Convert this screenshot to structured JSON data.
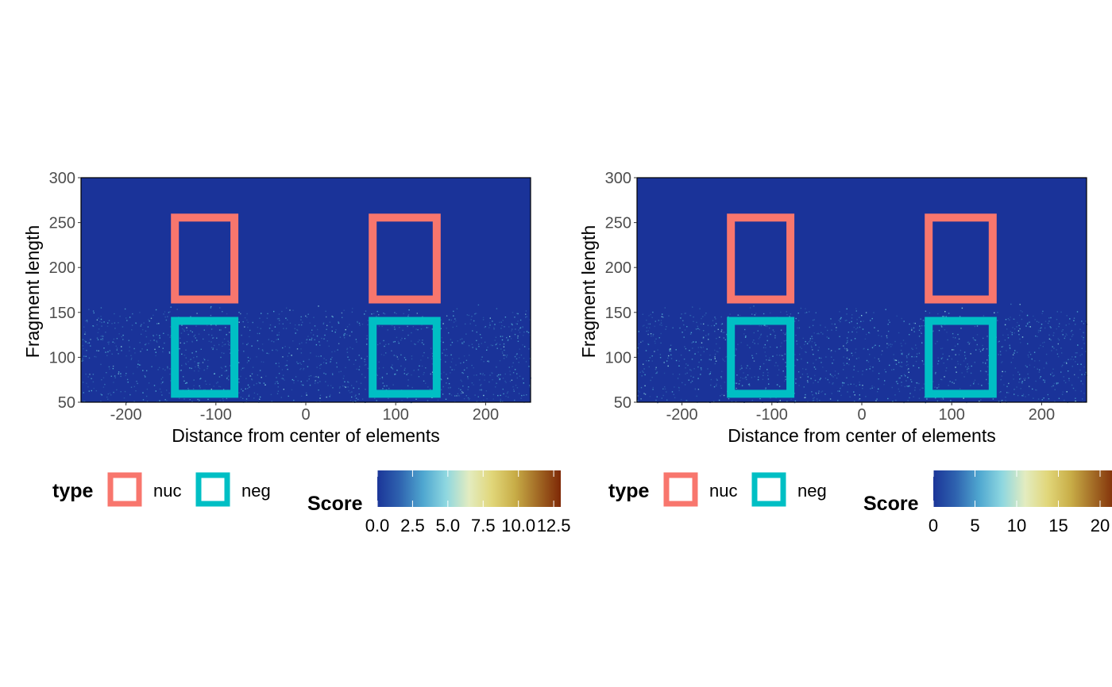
{
  "colors": {
    "background_fill": "#1a3399",
    "nuc": "#f8766d",
    "neg": "#00bfc4",
    "colormap": [
      "#1b3598",
      "#2f64b0",
      "#4fa7d0",
      "#8ed7e0",
      "#e3ecc0",
      "#e1d679",
      "#c8ad47",
      "#a26a25",
      "#7e2806"
    ]
  },
  "chart_data": [
    {
      "type": "heatmap",
      "title": "",
      "xlabel": "Distance from center of elements",
      "ylabel": "Fragment length",
      "xlim": [
        -250,
        250
      ],
      "ylim": [
        50,
        300
      ],
      "x_ticks": [
        -200,
        -100,
        0,
        100,
        200
      ],
      "x_tick_labels": [
        "-200",
        "-100",
        "0",
        "100",
        "200"
      ],
      "y_ticks": [
        50,
        100,
        150,
        200,
        250,
        300
      ],
      "y_tick_labels": [
        "50",
        "100",
        "150",
        "200",
        "250",
        "300"
      ],
      "grid": false,
      "signal_band_fragment_length": [
        50,
        160
      ],
      "regions": [
        {
          "type": "nuc",
          "x": [
            -150,
            -75
          ],
          "y": [
            160,
            260
          ]
        },
        {
          "type": "nuc",
          "x": [
            70,
            150
          ],
          "y": [
            160,
            260
          ]
        },
        {
          "type": "neg",
          "x": [
            -150,
            -75
          ],
          "y": [
            55,
            145
          ]
        },
        {
          "type": "neg",
          "x": [
            70,
            150
          ],
          "y": [
            55,
            145
          ]
        }
      ],
      "legend_type": {
        "title": "type",
        "items": [
          "nuc",
          "neg"
        ],
        "position": "bottom"
      },
      "colorbar": {
        "title": "Score",
        "range": [
          0,
          13
        ],
        "ticks": [
          0,
          2.5,
          5,
          7.5,
          10,
          12.5
        ],
        "tick_labels": [
          "0.0",
          "2.5",
          "5.0",
          "7.5",
          "10.0",
          "12.5"
        ],
        "position": "bottom"
      }
    },
    {
      "type": "heatmap",
      "title": "",
      "xlabel": "Distance from center of elements",
      "ylabel": "Fragment length",
      "xlim": [
        -250,
        250
      ],
      "ylim": [
        50,
        300
      ],
      "x_ticks": [
        -200,
        -100,
        0,
        100,
        200
      ],
      "x_tick_labels": [
        "-200",
        "-100",
        "0",
        "100",
        "200"
      ],
      "y_ticks": [
        50,
        100,
        150,
        200,
        250,
        300
      ],
      "y_tick_labels": [
        "50",
        "100",
        "150",
        "200",
        "250",
        "300"
      ],
      "grid": false,
      "signal_band_fragment_length": [
        50,
        160
      ],
      "regions": [
        {
          "type": "nuc",
          "x": [
            -150,
            -75
          ],
          "y": [
            160,
            260
          ]
        },
        {
          "type": "nuc",
          "x": [
            70,
            150
          ],
          "y": [
            160,
            260
          ]
        },
        {
          "type": "neg",
          "x": [
            -150,
            -75
          ],
          "y": [
            55,
            145
          ]
        },
        {
          "type": "neg",
          "x": [
            70,
            150
          ],
          "y": [
            55,
            145
          ]
        }
      ],
      "legend_type": {
        "title": "type",
        "items": [
          "nuc",
          "neg"
        ],
        "position": "bottom"
      },
      "colorbar": {
        "title": "Score",
        "range": [
          0,
          22
        ],
        "ticks": [
          0,
          5,
          10,
          15,
          20
        ],
        "tick_labels": [
          "0",
          "5",
          "10",
          "15",
          "20"
        ],
        "position": "bottom"
      }
    }
  ]
}
